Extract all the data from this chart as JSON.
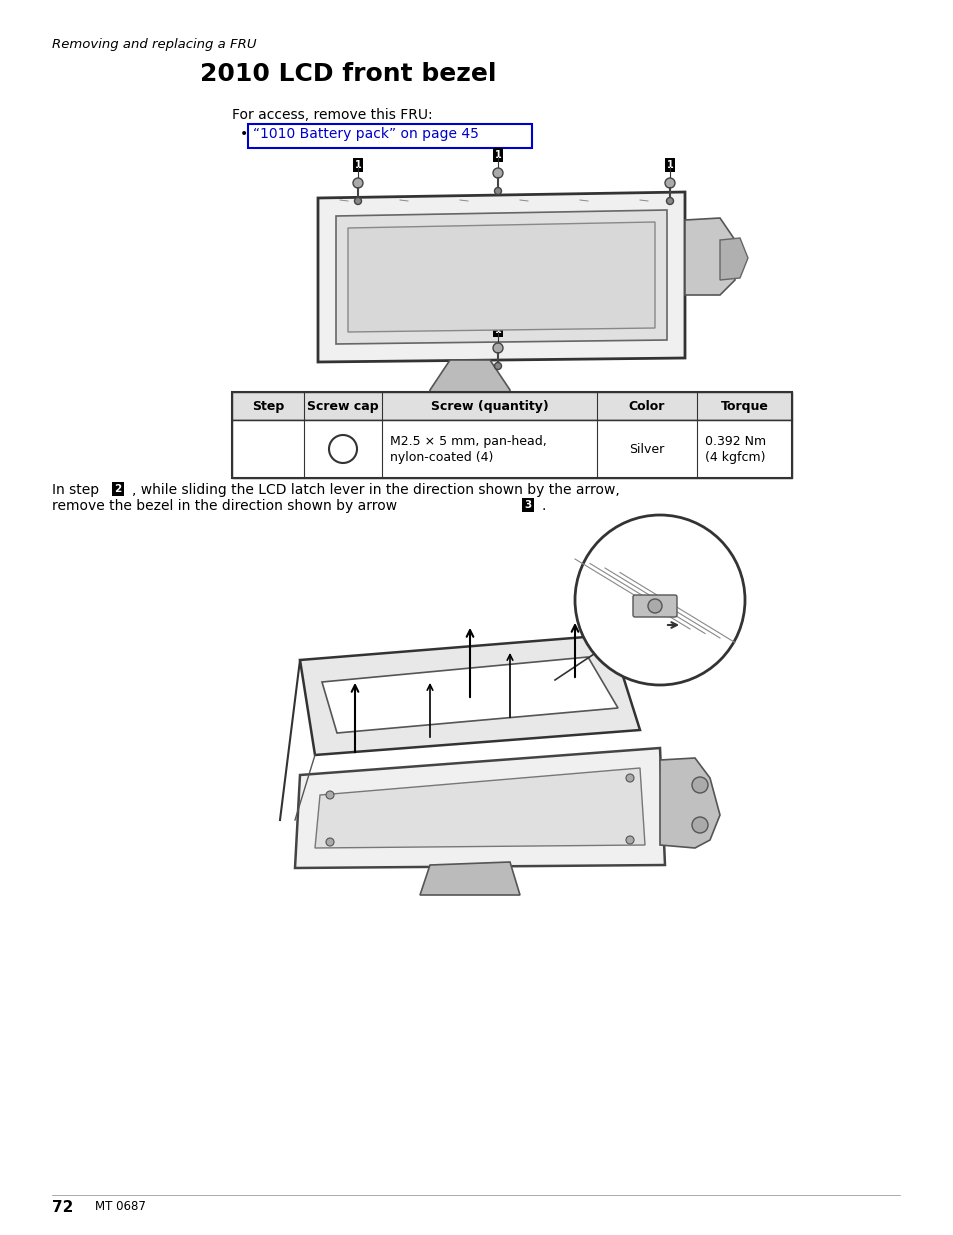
{
  "page_background": "#ffffff",
  "header_italic": "Removing and replacing a FRU",
  "title": "2010 LCD front bezel",
  "access_text": "For access, remove this FRU:",
  "bullet_link": "“1010 Battery pack” on page 45",
  "table_headers": [
    "Step",
    "Screw cap",
    "Screw (quantity)",
    "Color",
    "Torque"
  ],
  "table_row_screw": "M2.5 × 5 mm, pan-head,\nnylon-coated (4)",
  "table_row_color": "Silver",
  "table_row_torque": "0.392 Nm\n(4 kgfcm)",
  "footer_page": "72",
  "footer_text": "MT 0687",
  "body_fontsize": 10,
  "header_fontsize": 9.5,
  "title_fontsize": 18
}
